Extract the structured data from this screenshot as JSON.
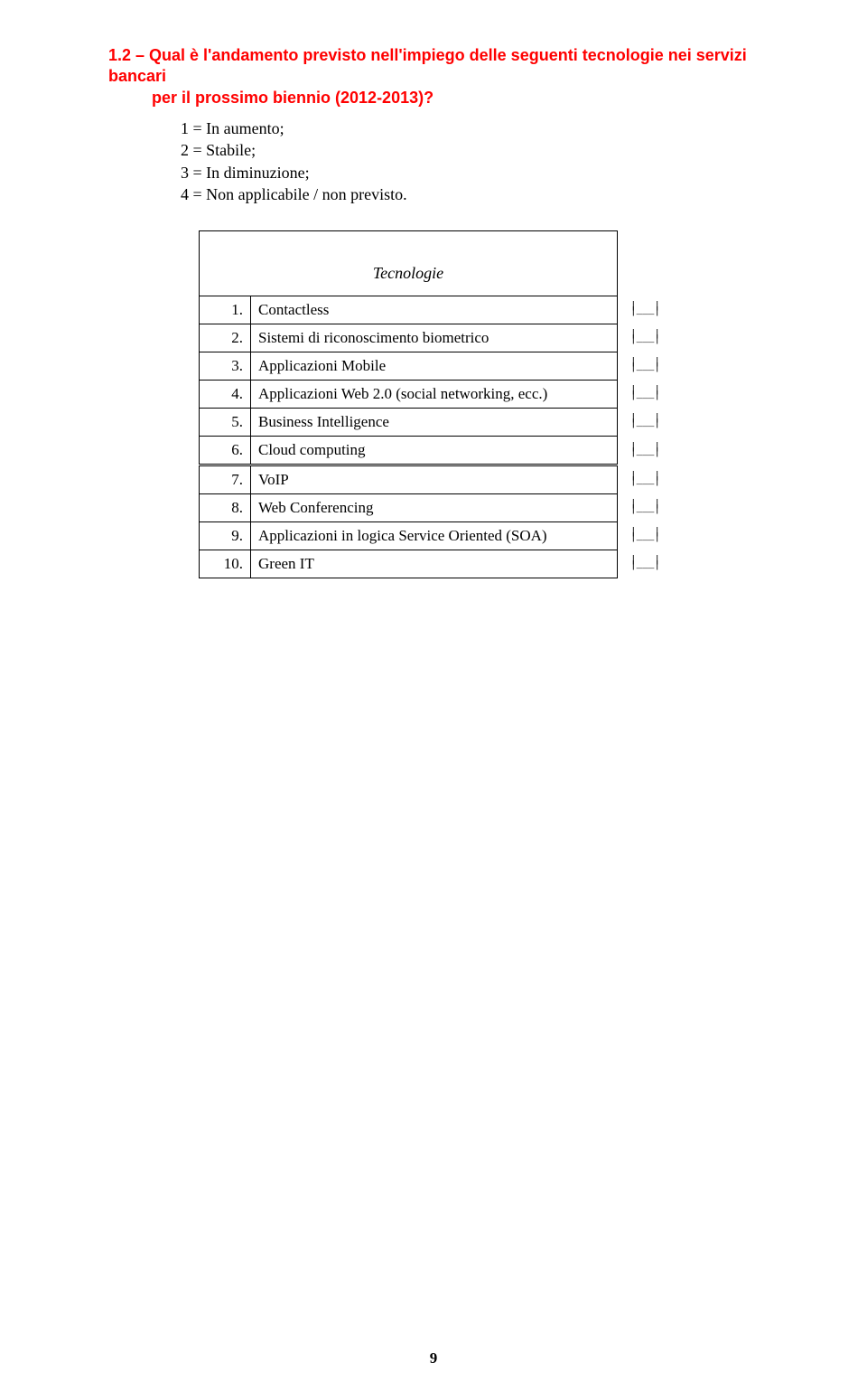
{
  "question": {
    "line1": "1.2 – Qual è l'andamento previsto nell'impiego delle seguenti tecnologie nei servizi bancari",
    "line2": "per il prossimo biennio (2012-2013)?"
  },
  "legend": {
    "l1": "1 = In aumento;",
    "l2": "2 = Stabile;",
    "l3": "3 = In diminuzione;",
    "l4": "4 = Non applicabile / non previsto."
  },
  "table": {
    "header": "Tecnologie",
    "rows": [
      {
        "n": "1.",
        "label": "Contactless"
      },
      {
        "n": "2.",
        "label": "Sistemi di riconoscimento biometrico"
      },
      {
        "n": "3.",
        "label": "Applicazioni Mobile"
      },
      {
        "n": "4.",
        "label": "Applicazioni Web 2.0 (social networking, ecc.)"
      },
      {
        "n": "5.",
        "label": "Business Intelligence"
      },
      {
        "n": "6.",
        "label": "Cloud computing"
      },
      {
        "n": "7.",
        "label": "VoIP"
      },
      {
        "n": "8.",
        "label": "Web Conferencing"
      },
      {
        "n": "9.",
        "label": "Applicazioni in logica Service Oriented (SOA)"
      },
      {
        "n": "10.",
        "label": "Green IT"
      }
    ],
    "input_glyph": "|   |\n|___|"
  },
  "page_number": "9",
  "style": {
    "title_color": "#ff0000",
    "text_color": "#000000",
    "background_color": "#ffffff",
    "border_color": "#000000",
    "title_font": "Arial",
    "body_font": "Times New Roman",
    "title_fontsize": 18,
    "body_fontsize": 18,
    "row_fontsize": 17,
    "double_rule_after_index": 5
  }
}
